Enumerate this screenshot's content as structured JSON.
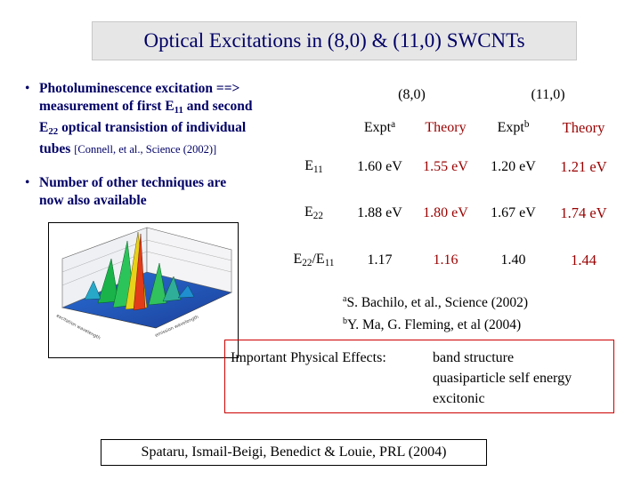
{
  "title": "Optical Excitations in (8,0) & (11,0) SWCNTs",
  "bullets": {
    "dot": "•",
    "b1": {
      "line1": "Photoluminescence excitation ==>",
      "line2_pre": "measurement of first E",
      "line2_sub": "11",
      "line2_post": " and second",
      "line3_pre": "E",
      "line3_sub": "22",
      "line3_post": " optical transistion of individual",
      "line4": "tubes",
      "cite": "[Connell, et al., Science (2002)]"
    },
    "b2": {
      "line1": "Number of other techniques are",
      "line2": "now also available"
    }
  },
  "table": {
    "groups": [
      "(8,0)",
      "(11,0)"
    ],
    "expt_a": "Expt",
    "sup_a": "a",
    "expt_b": "Expt",
    "sup_b": "b",
    "theory": "Theory",
    "rows": [
      {
        "label_main": "E",
        "label_sub": "11",
        "v1": "1.60 eV",
        "v2": "1.55 eV",
        "v3": "1.20 eV",
        "v4": "1.21 eV"
      },
      {
        "label_main": "E",
        "label_sub": "22",
        "v1": "1.88 eV",
        "v2": "1.80 eV",
        "v3": "1.67 eV",
        "v4": "1.74 eV"
      },
      {
        "label_main": "E",
        "label_sub": "22",
        "label_slash": "/E",
        "label_sub2": "11",
        "v1": "1.17",
        "v2": "1.16",
        "v3": "1.40",
        "v4": "1.44"
      }
    ]
  },
  "refs": {
    "a_sup": "a",
    "a_text": "S. Bachilo, et al., Science (2002)",
    "b_sup": "b",
    "b_text": "Y. Ma, G. Fleming, et al (2004)"
  },
  "effects": {
    "label": "Important Physical Effects:",
    "items": [
      "band structure",
      "quasiparticle self energy",
      "excitonic"
    ]
  },
  "citation": "Spataru, Ismail-Beigi, Benedict & Louie, PRL (2004)",
  "colors": {
    "title_text": "#000066",
    "bullet_text": "#000066",
    "theory_text": "#990000",
    "effects_border": "#cc0000"
  }
}
